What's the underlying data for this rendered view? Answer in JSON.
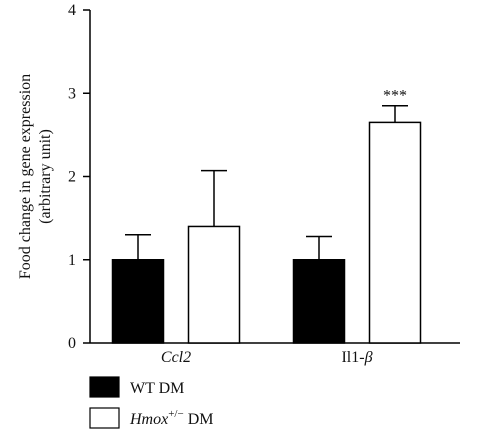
{
  "chart_data": {
    "type": "bar",
    "ylabel_lines": [
      "Food change in gene expression",
      "(arbitrary unit)"
    ],
    "ylim": [
      0,
      4
    ],
    "yticks": [
      0,
      1,
      2,
      3,
      4
    ],
    "categories": [
      {
        "label_main": "Ccl2",
        "label_suffix": "",
        "italic_main": true
      },
      {
        "label_main": "Il1-",
        "label_suffix": "β",
        "italic_main": false
      }
    ],
    "series": [
      {
        "legend_main": "WT DM",
        "legend_sup": "",
        "legend_tail": "",
        "fill": "#000000",
        "values": [
          1.0,
          1.0
        ],
        "errors": [
          0.3,
          0.28
        ]
      },
      {
        "legend_main": "Hmox",
        "legend_sup": "+/−",
        "legend_tail": " DM",
        "fill": "#ffffff",
        "values": [
          1.4,
          2.65
        ],
        "errors": [
          0.67,
          0.2
        ]
      }
    ],
    "annotations": [
      {
        "category": 1,
        "series": 1,
        "text": "***"
      }
    ],
    "legend_position": "bottom-left",
    "grid": false
  }
}
